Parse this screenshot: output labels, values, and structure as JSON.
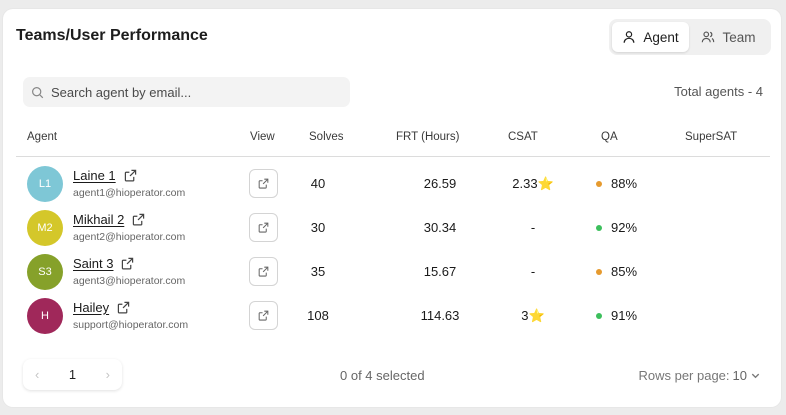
{
  "header": {
    "title": "Teams/User Performance"
  },
  "toggle": {
    "agent_label": "Agent",
    "team_label": "Team"
  },
  "search": {
    "placeholder": "Search agent by email..."
  },
  "total_agents": "Total agents - 4",
  "columns": [
    "Agent",
    "View",
    "Solves",
    "FRT (Hours)",
    "CSAT",
    "QA",
    "SuperSAT"
  ],
  "rows": [
    {
      "initials": "L1",
      "avatar_color": "#7ec7d6",
      "name": "Laine 1",
      "email": "agent1@hioperator.com",
      "solves": "40",
      "frt": "26.59",
      "csat": "2.33",
      "csat_star": true,
      "qa": "88%",
      "qa_color": "#e69a2e",
      "supersat": ""
    },
    {
      "initials": "M2",
      "avatar_color": "#d4c72a",
      "name": "Mikhail 2",
      "email": "agent2@hioperator.com",
      "solves": "30",
      "frt": "30.34",
      "csat": "-",
      "csat_star": false,
      "qa": "92%",
      "qa_color": "#3cbf5c",
      "supersat": ""
    },
    {
      "initials": "S3",
      "avatar_color": "#86a12a",
      "name": "Saint 3",
      "email": "agent3@hioperator.com",
      "solves": "35",
      "frt": "15.67",
      "csat": "-",
      "csat_star": false,
      "qa": "85%",
      "qa_color": "#e69a2e",
      "supersat": ""
    },
    {
      "initials": "H",
      "avatar_color": "#a0285a",
      "name": "Hailey",
      "email": "support@hioperator.com",
      "solves": "108",
      "frt": "114.63",
      "csat": "3",
      "csat_star": true,
      "qa": "91%",
      "qa_color": "#3cbf5c",
      "supersat": ""
    }
  ],
  "footer": {
    "page": "1",
    "selected": "0 of 4 selected",
    "rows_per_page_label": "Rows per page:",
    "rows_per_page_value": "10"
  },
  "icons": {
    "star": "star-icon",
    "external": "external-link-icon",
    "search": "search-icon",
    "user": "user-icon",
    "users": "users-icon"
  }
}
